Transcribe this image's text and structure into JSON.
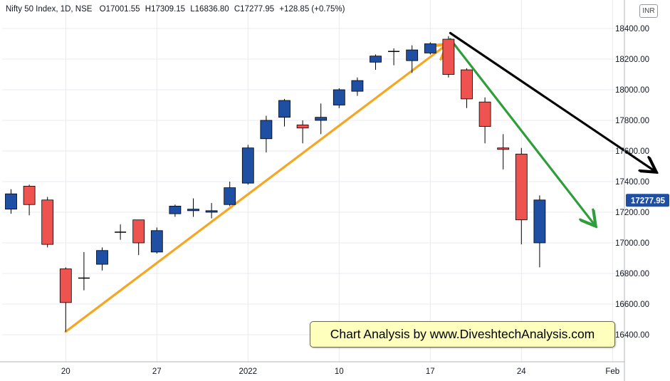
{
  "header": {
    "symbol": "Nifty 50 Index, 1D, NSE",
    "open": "O17001.55",
    "high": "H17309.15",
    "low": "L16836.80",
    "close": "C17277.95",
    "change": "+128.85 (+0.75%)"
  },
  "currency_badge": "INR",
  "annotation": "Chart Analysis by www.DiveshtechAnalysis.com",
  "colors": {
    "up": "#1f4fa3",
    "down": "#ef5350",
    "trend_up": "#f5a623",
    "trend_down_green": "#2e9e3a",
    "trend_down_black": "#000000",
    "price_label": "#1f4fa3",
    "grid": "#e9ebf0"
  },
  "chart_data": {
    "type": "candlestick",
    "title": "Nifty 50 Index, 1D, NSE",
    "ylim": [
      16180,
      18560
    ],
    "y_ticks": [
      16400,
      16600,
      16800,
      17000,
      17200,
      17400,
      17600,
      17800,
      18000,
      18200,
      18400
    ],
    "x_ticks": [
      {
        "label": "20",
        "index": 3
      },
      {
        "label": "27",
        "index": 8
      },
      {
        "label": "2022",
        "index": 13
      },
      {
        "label": "10",
        "index": 18
      },
      {
        "label": "17",
        "index": 23
      },
      {
        "label": "24",
        "index": 28
      },
      {
        "label": "Feb",
        "index": 33
      }
    ],
    "last_price_label": "17277.95",
    "last_price": 17277.95,
    "candles": [
      {
        "index": 0,
        "open": 17220,
        "high": 17350,
        "low": 17190,
        "close": 17320
      },
      {
        "index": 1,
        "open": 17370,
        "high": 17380,
        "low": 17180,
        "close": 17250
      },
      {
        "index": 2,
        "open": 17280,
        "high": 17300,
        "low": 16970,
        "close": 16990
      },
      {
        "index": 3,
        "open": 16830,
        "high": 16840,
        "low": 16420,
        "close": 16610
      },
      {
        "index": 4,
        "open": 16770,
        "high": 16940,
        "low": 16690,
        "close": 16770
      },
      {
        "index": 5,
        "open": 16860,
        "high": 16970,
        "low": 16820,
        "close": 16950
      },
      {
        "index": 6,
        "open": 17070,
        "high": 17120,
        "low": 17020,
        "close": 17070
      },
      {
        "index": 7,
        "open": 17150,
        "high": 17150,
        "low": 16920,
        "close": 17000
      },
      {
        "index": 8,
        "open": 16940,
        "high": 17100,
        "low": 16930,
        "close": 17080
      },
      {
        "index": 9,
        "open": 17190,
        "high": 17250,
        "low": 17170,
        "close": 17240
      },
      {
        "index": 10,
        "open": 17210,
        "high": 17290,
        "low": 17170,
        "close": 17220
      },
      {
        "index": 11,
        "open": 17200,
        "high": 17260,
        "low": 17160,
        "close": 17210
      },
      {
        "index": 12,
        "open": 17250,
        "high": 17400,
        "low": 17240,
        "close": 17360
      },
      {
        "index": 13,
        "open": 17390,
        "high": 17640,
        "low": 17380,
        "close": 17620
      },
      {
        "index": 14,
        "open": 17680,
        "high": 17830,
        "low": 17590,
        "close": 17800
      },
      {
        "index": 15,
        "open": 17820,
        "high": 17940,
        "low": 17760,
        "close": 17930
      },
      {
        "index": 16,
        "open": 17770,
        "high": 17800,
        "low": 17650,
        "close": 17750
      },
      {
        "index": 17,
        "open": 17800,
        "high": 17910,
        "low": 17710,
        "close": 17820
      },
      {
        "index": 18,
        "open": 17900,
        "high": 18010,
        "low": 17880,
        "close": 18000
      },
      {
        "index": 19,
        "open": 17990,
        "high": 18080,
        "low": 17960,
        "close": 18060
      },
      {
        "index": 20,
        "open": 18180,
        "high": 18230,
        "low": 18130,
        "close": 18220
      },
      {
        "index": 21,
        "open": 18250,
        "high": 18270,
        "low": 18160,
        "close": 18250
      },
      {
        "index": 22,
        "open": 18190,
        "high": 18290,
        "low": 18110,
        "close": 18260
      },
      {
        "index": 23,
        "open": 18240,
        "high": 18310,
        "low": 18230,
        "close": 18300
      },
      {
        "index": 24,
        "open": 18330,
        "high": 18350,
        "low": 18080,
        "close": 18100
      },
      {
        "index": 25,
        "open": 18130,
        "high": 18140,
        "low": 17880,
        "close": 17940
      },
      {
        "index": 26,
        "open": 17920,
        "high": 17950,
        "low": 17650,
        "close": 17760
      },
      {
        "index": 27,
        "open": 17620,
        "high": 17710,
        "low": 17480,
        "close": 17610
      },
      {
        "index": 28,
        "open": 17580,
        "high": 17620,
        "low": 16990,
        "close": 17150
      },
      {
        "index": 29,
        "open": 17000,
        "high": 17310,
        "low": 16840,
        "close": 17280
      }
    ],
    "trendlines": [
      {
        "name": "up-trend",
        "color": "#f5a623",
        "from": {
          "index": 3,
          "value": 16420
        },
        "to": {
          "index": 23.85,
          "value": 18290
        },
        "arrow": true
      },
      {
        "name": "down-trend-green",
        "color": "#2e9e3a",
        "from": {
          "index": 24.1,
          "value": 18330
        },
        "to": {
          "index": 32,
          "value": 17120
        },
        "arrow": true
      },
      {
        "name": "down-trend-black",
        "color": "#000000",
        "from": {
          "index": 24.1,
          "value": 18370
        },
        "to": {
          "index": 35.3,
          "value": 17470
        },
        "arrow": true
      }
    ]
  }
}
